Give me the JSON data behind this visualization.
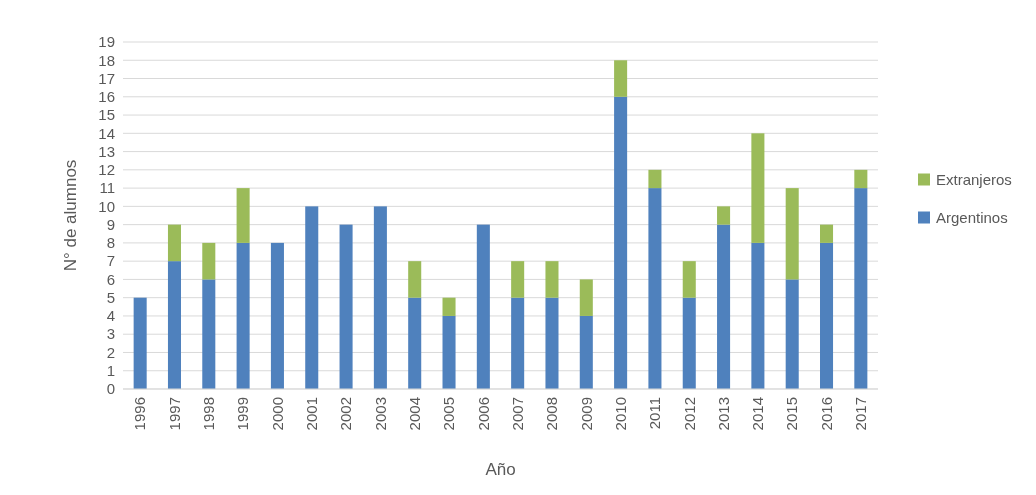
{
  "chart_data": {
    "type": "bar",
    "stacked": true,
    "xlabel": "Año",
    "ylabel": "N° de alumnos",
    "categories": [
      "1996",
      "1997",
      "1998",
      "1999",
      "2000",
      "2001",
      "2002",
      "2003",
      "2004",
      "2005",
      "2006",
      "2007",
      "2008",
      "2009",
      "2010",
      "2011",
      "2012",
      "2013",
      "2014",
      "2015",
      "2016",
      "2017"
    ],
    "series": [
      {
        "name": "Argentinos",
        "color": "#4f81bd",
        "values": [
          5,
          7,
          6,
          8,
          8,
          10,
          9,
          10,
          5,
          4,
          9,
          5,
          5,
          4,
          16,
          11,
          5,
          9,
          8,
          6,
          8,
          11
        ]
      },
      {
        "name": "Extranjeros",
        "color": "#9bbb59",
        "values": [
          0,
          2,
          2,
          3,
          0,
          0,
          0,
          0,
          2,
          1,
          0,
          2,
          2,
          2,
          2,
          1,
          2,
          1,
          6,
          5,
          1,
          1
        ]
      }
    ],
    "ylim": [
      0,
      19
    ],
    "yticks": [
      0,
      1,
      2,
      3,
      4,
      5,
      6,
      7,
      8,
      9,
      10,
      11,
      12,
      13,
      14,
      15,
      16,
      17,
      18,
      19
    ],
    "grid": "y",
    "legend": "right"
  }
}
